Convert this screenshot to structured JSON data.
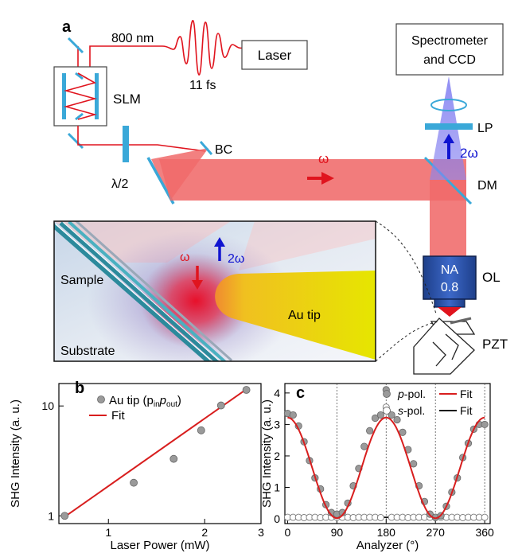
{
  "panel_a": {
    "label": "a",
    "wavelength": "800 nm",
    "pulse": "11 fs",
    "laser": "Laser",
    "slm": "SLM",
    "half_wave": "λ/2",
    "bc": "BC",
    "omega": "ω",
    "two_omega": "2ω",
    "spectrometer_line1": "Spectrometer",
    "spectrometer_line2": "and CCD",
    "lp": "LP",
    "dm": "DM",
    "na_line1": "NA",
    "na_line2": "0.8",
    "ol": "OL",
    "pzt": "PZT",
    "inset": {
      "sample": "Sample",
      "substrate": "Substrate",
      "tip": "Au tip",
      "omega": "ω",
      "two_omega": "2ω"
    },
    "colors": {
      "beam": "#f06a6a",
      "shg": "#6f6cf0",
      "optic": "#3aa8d8",
      "tip": "#e6e600"
    }
  },
  "chart_data": [
    {
      "panel": "b",
      "type": "scatter",
      "xlabel": "Laser Power (mW)",
      "ylabel": "SHG Intensity (a. u.)",
      "x_scale": "log",
      "y_scale": "log",
      "xlim": [
        0.7,
        3.0
      ],
      "ylim": [
        0.85,
        16
      ],
      "x_ticks": [
        {
          "v": 1,
          "label": "1"
        },
        {
          "v": 2,
          "label": "2"
        },
        {
          "v": 3,
          "label": "3"
        }
      ],
      "y_ticks": [
        {
          "v": 1,
          "label": "1"
        },
        {
          "v": 10,
          "label": "10"
        }
      ],
      "legend": {
        "placement": "top-left",
        "scatter_label": "Au tip (p",
        "scatter_sub1": "in",
        "scatter_mid": "p",
        "scatter_sub2": "out",
        "scatter_end": ")",
        "fit_label": "Fit"
      },
      "series": [
        {
          "kind": "scatter",
          "x": [
            0.73,
            1.2,
            1.6,
            1.95,
            2.25,
            2.7
          ],
          "y": [
            1.0,
            2.0,
            3.3,
            6.0,
            10.1,
            14.0
          ]
        },
        {
          "kind": "fit",
          "x": [
            0.73,
            2.7
          ],
          "y": [
            0.98,
            14.2
          ]
        }
      ],
      "colors": {
        "points": "#9a9a9a",
        "fit": "#d81e1e"
      }
    },
    {
      "panel": "c",
      "type": "scatter",
      "xlabel": "Analyzer (°)",
      "ylabel": "SHG Intensity (a. u.)",
      "xlim": [
        -5,
        370
      ],
      "ylim": [
        -0.15,
        4.3
      ],
      "x_ticks": [
        {
          "v": 0,
          "label": "0"
        },
        {
          "v": 90,
          "label": "90"
        },
        {
          "v": 180,
          "label": "180"
        },
        {
          "v": 270,
          "label": "270"
        },
        {
          "v": 360,
          "label": "360"
        }
      ],
      "y_ticks": [
        {
          "v": 0,
          "label": "0"
        },
        {
          "v": 1,
          "label": "1"
        },
        {
          "v": 2,
          "label": "2"
        },
        {
          "v": 3,
          "label": "3"
        },
        {
          "v": 4,
          "label": "4"
        }
      ],
      "vlines": [
        90,
        180,
        270,
        360
      ],
      "legend": {
        "placement": "top-right",
        "p_label_i": "p",
        "p_label": "-pol.",
        "s_label_i": "s",
        "s_label": "-pol.",
        "fit_label": "Fit"
      },
      "fit_amplitude": 3.2,
      "p_pol": {
        "x": [
          0,
          10,
          20,
          30,
          40,
          50,
          60,
          70,
          80,
          90,
          100,
          110,
          120,
          130,
          140,
          150,
          160,
          170,
          180,
          190,
          200,
          210,
          220,
          230,
          240,
          250,
          260,
          270,
          280,
          290,
          300,
          310,
          320,
          330,
          340,
          350,
          360
        ],
        "y": [
          3.35,
          3.3,
          2.95,
          2.45,
          1.85,
          1.3,
          0.95,
          0.45,
          0.2,
          0.15,
          0.2,
          0.5,
          1.05,
          1.6,
          2.3,
          2.8,
          3.2,
          3.3,
          4.1,
          3.3,
          3.15,
          2.75,
          2.2,
          1.75,
          1.05,
          0.55,
          0.15,
          0.05,
          0.1,
          0.4,
          0.85,
          1.3,
          1.95,
          2.4,
          2.85,
          3.0,
          3.0
        ]
      },
      "s_pol": {
        "x": [
          0,
          10,
          20,
          30,
          40,
          50,
          60,
          70,
          80,
          90,
          100,
          110,
          120,
          130,
          140,
          150,
          160,
          170,
          180,
          190,
          200,
          210,
          220,
          230,
          240,
          250,
          260,
          270,
          280,
          290,
          300,
          310,
          320,
          330,
          340,
          350,
          360
        ],
        "y": [
          0.05,
          0.05,
          0.05,
          0.04,
          0.05,
          0.05,
          0.04,
          0.05,
          0.05,
          0.05,
          0.05,
          0.05,
          0.04,
          0.05,
          0.05,
          0.05,
          0.05,
          0.04,
          3.55,
          0.05,
          0.05,
          0.05,
          0.04,
          0.05,
          0.05,
          0.05,
          0.05,
          0.04,
          0.05,
          0.05,
          0.05,
          0.05,
          0.04,
          0.05,
          0.05,
          0.05,
          0.05
        ]
      },
      "colors": {
        "p_points": "#9a9a9a",
        "s_points": "#ffffff",
        "p_fit": "#d81e1e",
        "s_fit": "#111111"
      }
    }
  ]
}
